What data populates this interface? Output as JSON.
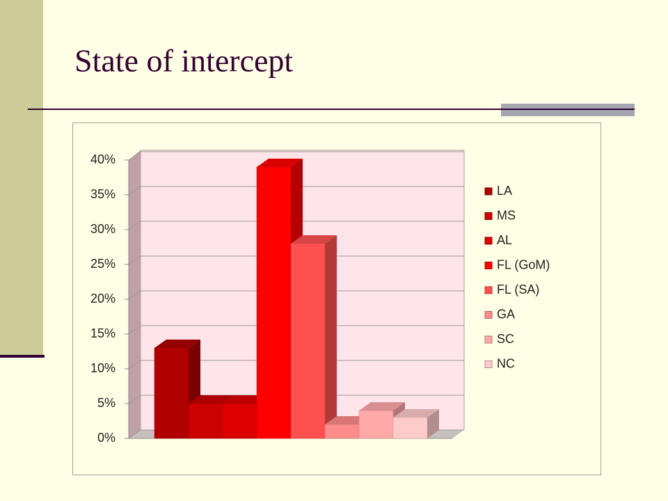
{
  "chart_data": {
    "type": "bar",
    "title": "State of intercept",
    "series": [
      {
        "name": "LA",
        "color": "#b00000",
        "values": [
          13
        ]
      },
      {
        "name": "MS",
        "color": "#cc0000",
        "values": [
          5
        ]
      },
      {
        "name": "AL",
        "color": "#dd0000",
        "values": [
          5
        ]
      },
      {
        "name": "FL (GoM)",
        "color": "#ff0000",
        "values": [
          39
        ]
      },
      {
        "name": "FL (SA)",
        "color": "#ff5050",
        "values": [
          28
        ]
      },
      {
        "name": "GA",
        "color": "#ff8c8c",
        "values": [
          2
        ]
      },
      {
        "name": "SC",
        "color": "#ffa8a8",
        "values": [
          4
        ]
      },
      {
        "name": "NC",
        "color": "#ffcaca",
        "values": [
          3
        ]
      }
    ],
    "ylim": [
      0,
      40
    ],
    "yticks": [
      {
        "value": 0,
        "label": "0%"
      },
      {
        "value": 5,
        "label": "5%"
      },
      {
        "value": 10,
        "label": "10%"
      },
      {
        "value": 15,
        "label": "15%"
      },
      {
        "value": 20,
        "label": "20%"
      },
      {
        "value": 25,
        "label": "25%"
      },
      {
        "value": 30,
        "label": "30%"
      },
      {
        "value": 35,
        "label": "35%"
      },
      {
        "value": 40,
        "label": "40%"
      }
    ],
    "grid": true,
    "legend": "right"
  }
}
